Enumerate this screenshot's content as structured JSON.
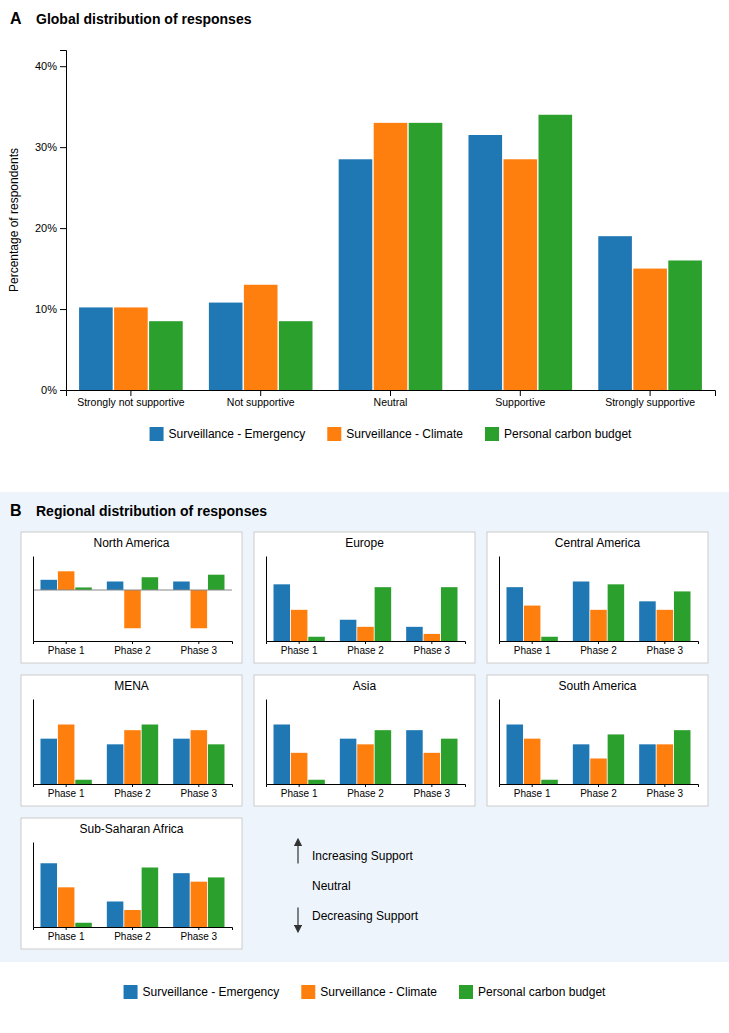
{
  "chart_data": [
    {
      "type": "bar",
      "title": "Global distribution of responses",
      "annotations": [
        "A"
      ],
      "categories": [
        "Strongly not supportive",
        "Not supportive",
        "Neutral",
        "Supportive",
        "Strongly supportive"
      ],
      "series": [
        {
          "name": "Surveillance - Emergency",
          "values": [
            10.2,
            10.8,
            28.5,
            31.5,
            19.0
          ]
        },
        {
          "name": "Surveillance - Climate",
          "values": [
            10.2,
            13.0,
            33.0,
            28.5,
            15.0
          ]
        },
        {
          "name": "Personal carbon budget",
          "values": [
            8.5,
            8.5,
            33.0,
            34.0,
            16.0
          ]
        }
      ],
      "ylabel": "Percentage of respondents",
      "ylim": [
        0,
        42
      ],
      "yticks": [
        {
          "value": 0,
          "label": "0%"
        },
        {
          "value": 10,
          "label": "10%"
        },
        {
          "value": 20,
          "label": "20%"
        },
        {
          "value": 30,
          "label": "30%"
        },
        {
          "value": 40,
          "label": "40%"
        }
      ],
      "legend": "bottom"
    },
    {
      "type": "bar",
      "title": "North America",
      "annotations": [
        "B",
        "Regional distribution of responses",
        "Increasing Support",
        "Neutral",
        "Decreasing Support"
      ],
      "categories": [
        "Phase 1",
        "Phase 2",
        "Phase 3"
      ],
      "series": [
        {
          "values": [
            1.2,
            1.0,
            1.0
          ]
        },
        {
          "values": [
            2.2,
            -4.5,
            -4.5
          ]
        },
        {
          "values": [
            0.3,
            1.5,
            1.8
          ]
        }
      ],
      "ylim": [
        -6,
        4
      ],
      "tick_labels": "x"
    },
    {
      "type": "bar",
      "title": "Europe",
      "categories": [
        "Phase 1",
        "Phase 2",
        "Phase 3"
      ],
      "series": [
        {
          "values": [
            4.0,
            1.5,
            1.0
          ]
        },
        {
          "values": [
            2.2,
            1.0,
            0.5
          ]
        },
        {
          "values": [
            0.3,
            3.8,
            3.8
          ]
        }
      ],
      "ylim": [
        0,
        6
      ],
      "tick_labels": "x"
    },
    {
      "type": "bar",
      "title": "Central America",
      "categories": [
        "Phase 1",
        "Phase 2",
        "Phase 3"
      ],
      "series": [
        {
          "values": [
            3.8,
            4.2,
            2.8
          ]
        },
        {
          "values": [
            2.5,
            2.2,
            2.2
          ]
        },
        {
          "values": [
            0.3,
            4.0,
            3.5
          ]
        }
      ],
      "ylim": [
        0,
        6
      ],
      "tick_labels": "x"
    },
    {
      "type": "bar",
      "title": "MENA",
      "categories": [
        "Phase 1",
        "Phase 2",
        "Phase 3"
      ],
      "series": [
        {
          "values": [
            3.2,
            2.8,
            3.2
          ]
        },
        {
          "values": [
            4.2,
            3.8,
            3.8
          ]
        },
        {
          "values": [
            0.3,
            4.2,
            2.8
          ]
        }
      ],
      "ylim": [
        0,
        6
      ],
      "tick_labels": "x"
    },
    {
      "type": "bar",
      "title": "Asia",
      "categories": [
        "Phase 1",
        "Phase 2",
        "Phase 3"
      ],
      "series": [
        {
          "values": [
            4.2,
            3.2,
            3.8
          ]
        },
        {
          "values": [
            2.2,
            2.8,
            2.2
          ]
        },
        {
          "values": [
            0.3,
            3.8,
            3.2
          ]
        }
      ],
      "ylim": [
        0,
        6
      ],
      "tick_labels": "x"
    },
    {
      "type": "bar",
      "title": "South America",
      "categories": [
        "Phase 1",
        "Phase 2",
        "Phase 3"
      ],
      "series": [
        {
          "values": [
            4.2,
            2.8,
            2.8
          ]
        },
        {
          "values": [
            3.2,
            1.8,
            2.8
          ]
        },
        {
          "values": [
            0.3,
            3.5,
            3.8
          ]
        }
      ],
      "ylim": [
        0,
        6
      ],
      "tick_labels": "x"
    },
    {
      "type": "bar",
      "title": "Sub-Saharan Africa",
      "categories": [
        "Phase 1",
        "Phase 2",
        "Phase 3"
      ],
      "series": [
        {
          "values": [
            4.5,
            1.8,
            3.8
          ]
        },
        {
          "values": [
            2.8,
            1.2,
            3.2
          ]
        },
        {
          "values": [
            0.3,
            4.2,
            3.5
          ]
        }
      ],
      "ylim": [
        0,
        6
      ],
      "tick_labels": "x"
    }
  ]
}
